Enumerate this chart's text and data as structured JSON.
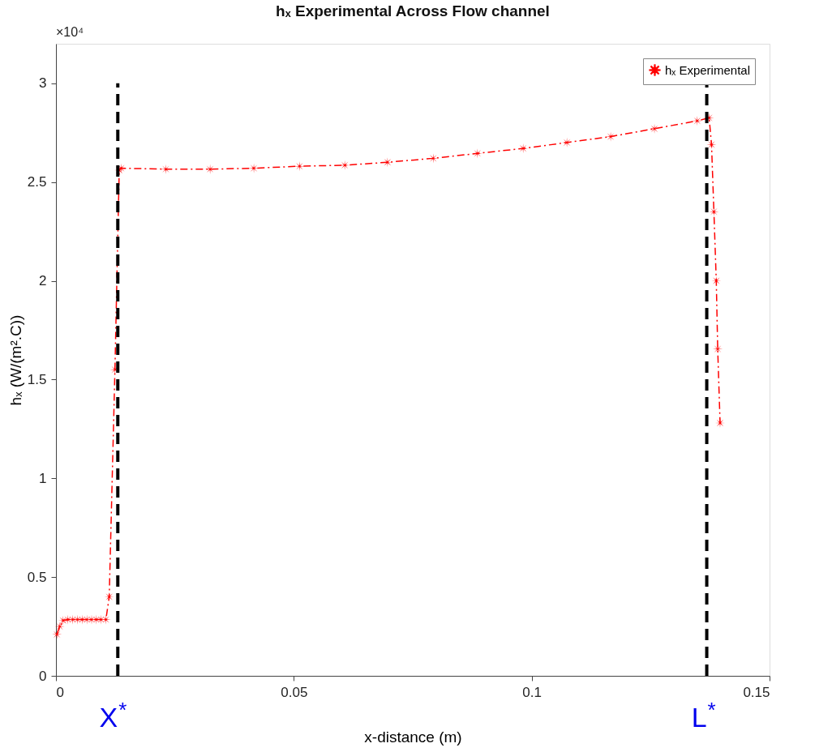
{
  "chart_data": {
    "type": "line",
    "title": "hₓ Experimental Across Flow channel",
    "xlabel": "x-distance (m)",
    "ylabel": "hₓ (W/(m².C))",
    "series": [
      {
        "name": "hₓ Experimental",
        "color": "#ff0000",
        "x": [
          0.0002,
          0.0008,
          0.0015,
          0.0025,
          0.0035,
          0.0045,
          0.0055,
          0.0065,
          0.0075,
          0.0085,
          0.0095,
          0.0105,
          0.0112,
          0.0124,
          0.0133,
          0.0137,
          0.0231,
          0.0324,
          0.0416,
          0.0512,
          0.0607,
          0.0697,
          0.0793,
          0.0886,
          0.0982,
          0.1074,
          0.1166,
          0.1258,
          0.1348,
          0.1373,
          0.1378,
          0.1383,
          0.1388,
          0.1391,
          0.1396
        ],
        "values": [
          0.21,
          0.25,
          0.28,
          0.285,
          0.285,
          0.285,
          0.285,
          0.285,
          0.285,
          0.285,
          0.285,
          0.285,
          0.4,
          1.55,
          2.56,
          2.57,
          2.565,
          2.565,
          2.57,
          2.58,
          2.585,
          2.6,
          2.62,
          2.645,
          2.67,
          2.7,
          2.73,
          2.77,
          2.81,
          2.825,
          2.69,
          2.35,
          2.0,
          1.655,
          1.28
        ]
      }
    ],
    "xlim": [
      0,
      0.15
    ],
    "xticks": [
      0,
      0.05,
      0.1,
      0.15
    ],
    "ylim": [
      0,
      3.2
    ],
    "yticks": [
      0,
      0.5,
      1,
      1.5,
      2,
      2.5,
      3
    ],
    "annotations": [
      "×10⁴"
    ],
    "ref_lines": [
      {
        "axis": "x",
        "value": 0.013,
        "label": "X$^{*}$",
        "color": "#000000",
        "line_style": "dashed"
      },
      {
        "axis": "x",
        "value": 0.1368,
        "label": "L$^{*}$",
        "color": "#000000",
        "line_style": "dashed"
      }
    ],
    "legend": "top right",
    "grid": false,
    "marker": "star",
    "line_style": "dashed"
  }
}
